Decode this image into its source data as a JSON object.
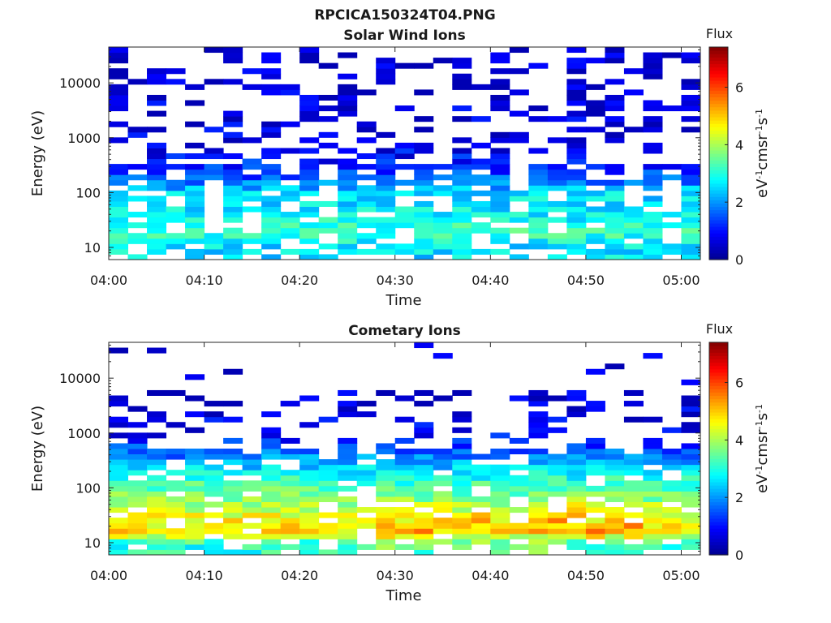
{
  "figure": {
    "title": "RPCICA150324T04.PNG"
  },
  "colors": {
    "colormap": "jet",
    "stops": [
      "#00008f",
      "#0000ff",
      "#0080ff",
      "#00ffff",
      "#80ff80",
      "#ffff00",
      "#ff8000",
      "#ff0000",
      "#800000"
    ]
  },
  "chart_data": [
    {
      "type": "heatmap",
      "title": "Solar Wind Ions",
      "xlabel": "Time",
      "ylabel": "Energy (eV)",
      "x_ticks": [
        "04:00",
        "04:10",
        "04:20",
        "04:30",
        "04:40",
        "04:50",
        "05:00"
      ],
      "x_tick_minutes": [
        0,
        10,
        20,
        30,
        40,
        50,
        60
      ],
      "xlim_minutes": [
        0,
        62
      ],
      "y_scale": "log",
      "ylim": [
        6,
        45000
      ],
      "y_ticks": [
        "10",
        "100",
        "1000",
        "10000"
      ],
      "y_tick_values": [
        10,
        100,
        1000,
        10000
      ],
      "colorbar": {
        "title": "Flux",
        "label": "eV-1cm-2sr-1s-1",
        "ticks": [
          "0",
          "2",
          "4",
          "6"
        ],
        "tick_values": [
          0,
          2,
          4,
          6
        ],
        "range": [
          0,
          7.4
        ]
      },
      "grid": false,
      "description": "Flux spectrogram, mostly 1-3 at low energies (10-300 eV) with sparse low-flux streaks up to 40 keV",
      "energy_profile": [
        {
          "energy": 10,
          "flux": 2.6
        },
        {
          "energy": 20,
          "flux": 3.2
        },
        {
          "energy": 40,
          "flux": 2.7
        },
        {
          "energy": 100,
          "flux": 2.5
        },
        {
          "energy": 200,
          "flux": 1.5
        },
        {
          "energy": 500,
          "flux": 0.9
        },
        {
          "energy": 1000,
          "flux": 0.7
        },
        {
          "energy": 5000,
          "flux": 0.6
        },
        {
          "energy": 30000,
          "flux": 0.5
        }
      ]
    },
    {
      "type": "heatmap",
      "title": "Cometary Ions",
      "xlabel": "Time",
      "ylabel": "Energy (eV)",
      "x_ticks": [
        "04:00",
        "04:10",
        "04:20",
        "04:30",
        "04:40",
        "04:50",
        "05:00"
      ],
      "x_tick_minutes": [
        0,
        10,
        20,
        30,
        40,
        50,
        60
      ],
      "xlim_minutes": [
        0,
        62
      ],
      "y_scale": "log",
      "ylim": [
        6,
        45000
      ],
      "y_ticks": [
        "10",
        "100",
        "1000",
        "10000"
      ],
      "y_tick_values": [
        10,
        100,
        1000,
        10000
      ],
      "colorbar": {
        "title": "Flux",
        "label": "eV-1cm-2sr-1s-1",
        "ticks": [
          "0",
          "2",
          "4",
          "6"
        ],
        "tick_values": [
          0,
          2,
          4,
          6
        ],
        "range": [
          0,
          7.4
        ]
      },
      "grid": false,
      "description": "Flux spectrogram with strong low-energy cometary ions peaking ~5-6 near 15-40 eV, decreasing to ~1 above 1 keV",
      "energy_profile": [
        {
          "energy": 10,
          "flux": 3.0
        },
        {
          "energy": 15,
          "flux": 4.8
        },
        {
          "energy": 30,
          "flux": 4.5
        },
        {
          "energy": 60,
          "flux": 3.8
        },
        {
          "energy": 150,
          "flux": 3.0
        },
        {
          "energy": 400,
          "flux": 1.8
        },
        {
          "energy": 1000,
          "flux": 0.8
        },
        {
          "energy": 5000,
          "flux": 0.5
        }
      ]
    }
  ]
}
